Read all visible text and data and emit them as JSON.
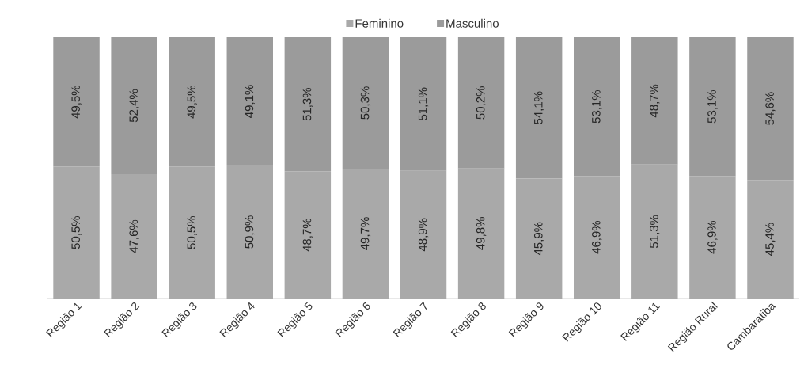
{
  "chart_data": {
    "type": "bar",
    "stacked": true,
    "legend": "top",
    "categories": [
      "Região 1",
      "Região 2",
      "Região 3",
      "Região 4",
      "Região 5",
      "Região 6",
      "Região 7",
      "Região 8",
      "Região 9",
      "Região 10",
      "Região 11",
      "Região Rural",
      "Cambaratiba"
    ],
    "series": [
      {
        "name": "Feminino",
        "color": "#a9a9a9",
        "values": [
          50.5,
          47.6,
          50.5,
          50.9,
          48.7,
          49.7,
          48.9,
          49.8,
          45.9,
          46.9,
          51.3,
          46.9,
          45.4
        ],
        "value_labels": [
          "50,5%",
          "47,6%",
          "50,5%",
          "50,9%",
          "48,7%",
          "49,7%",
          "48,9%",
          "49,8%",
          "45,9%",
          "46,9%",
          "51,3%",
          "46,9%",
          "45,4%"
        ]
      },
      {
        "name": "Masculino",
        "color": "#9b9b9b",
        "values": [
          49.5,
          52.4,
          49.5,
          49.1,
          51.3,
          50.3,
          51.1,
          50.2,
          54.1,
          53.1,
          48.7,
          53.1,
          54.6
        ],
        "value_labels": [
          "49,5%",
          "52,4%",
          "49,5%",
          "49,1%",
          "51,3%",
          "50,3%",
          "51,1%",
          "50,2%",
          "54,1%",
          "53,1%",
          "48,7%",
          "53,1%",
          "54,6%"
        ]
      }
    ]
  }
}
